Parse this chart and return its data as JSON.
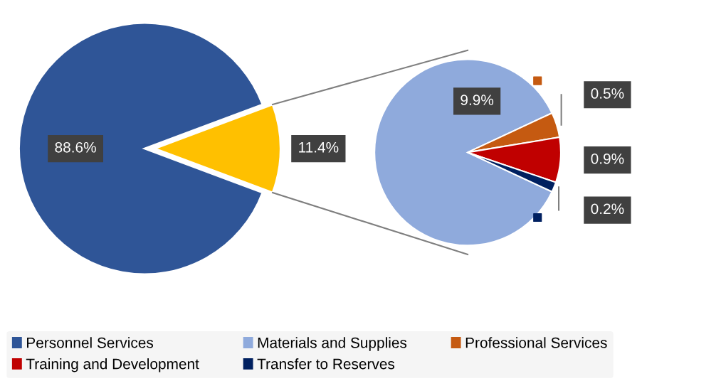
{
  "chart_data": [
    {
      "type": "pie",
      "categories": [
        "Personnel Services",
        null
      ],
      "values": [
        88.6,
        11.4
      ],
      "colors": [
        "#2f5597",
        "#ffc000"
      ],
      "value_labels": [
        "88.6%",
        "11.4%"
      ],
      "legend": "bottom"
    },
    {
      "type": "pie",
      "categories": [
        "Materials and Supplies",
        "Professional Services",
        "Training and Development",
        "Transfer to Reserves"
      ],
      "values": [
        9.9,
        0.5,
        0.9,
        0.2
      ],
      "colors": [
        "#8faadc",
        "#c55a11",
        "#c00000",
        "#002060"
      ],
      "value_labels": [
        "9.9%",
        "0.5%",
        "0.9%",
        "0.2%"
      ],
      "legend": "bottom"
    }
  ]
}
